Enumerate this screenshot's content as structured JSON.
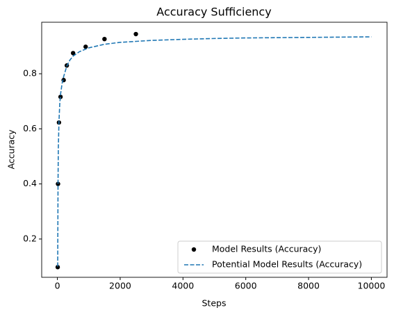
{
  "chart_data": {
    "type": "scatter",
    "title": "Accuracy Sufficiency",
    "x_label": "Steps",
    "y_label": "Accuracy",
    "series": [
      {
        "name": "Model Results (Accuracy)",
        "type": "scatter",
        "color": "#000000",
        "x": [
          10,
          20,
          50,
          100,
          200,
          300,
          500,
          900,
          1500,
          2500
        ],
        "values": [
          0.098,
          0.4,
          0.623,
          0.716,
          0.777,
          0.83,
          0.875,
          0.898,
          0.926,
          0.944
        ]
      },
      {
        "name": "Potential Model Results (Accuracy)",
        "type": "line",
        "dash": true,
        "color": "#1f77b4",
        "x": [
          10,
          20,
          30,
          50,
          75,
          100,
          150,
          200,
          300,
          400,
          500,
          700,
          1000,
          1500,
          2000,
          3000,
          4000,
          5000,
          6000,
          8000,
          10000
        ],
        "values": [
          0.1,
          0.4,
          0.53,
          0.625,
          0.69,
          0.725,
          0.765,
          0.79,
          0.828,
          0.85,
          0.864,
          0.88,
          0.894,
          0.907,
          0.914,
          0.921,
          0.925,
          0.928,
          0.93,
          0.932,
          0.934
        ]
      }
    ],
    "xlim": [
      -500,
      10500
    ],
    "ylim": [
      0.061,
      0.987
    ],
    "xticks": [
      0,
      2000,
      4000,
      6000,
      8000,
      10000
    ],
    "yticks": [
      0.2,
      0.4,
      0.6,
      0.8
    ],
    "grid": false,
    "legend": "lower right"
  }
}
